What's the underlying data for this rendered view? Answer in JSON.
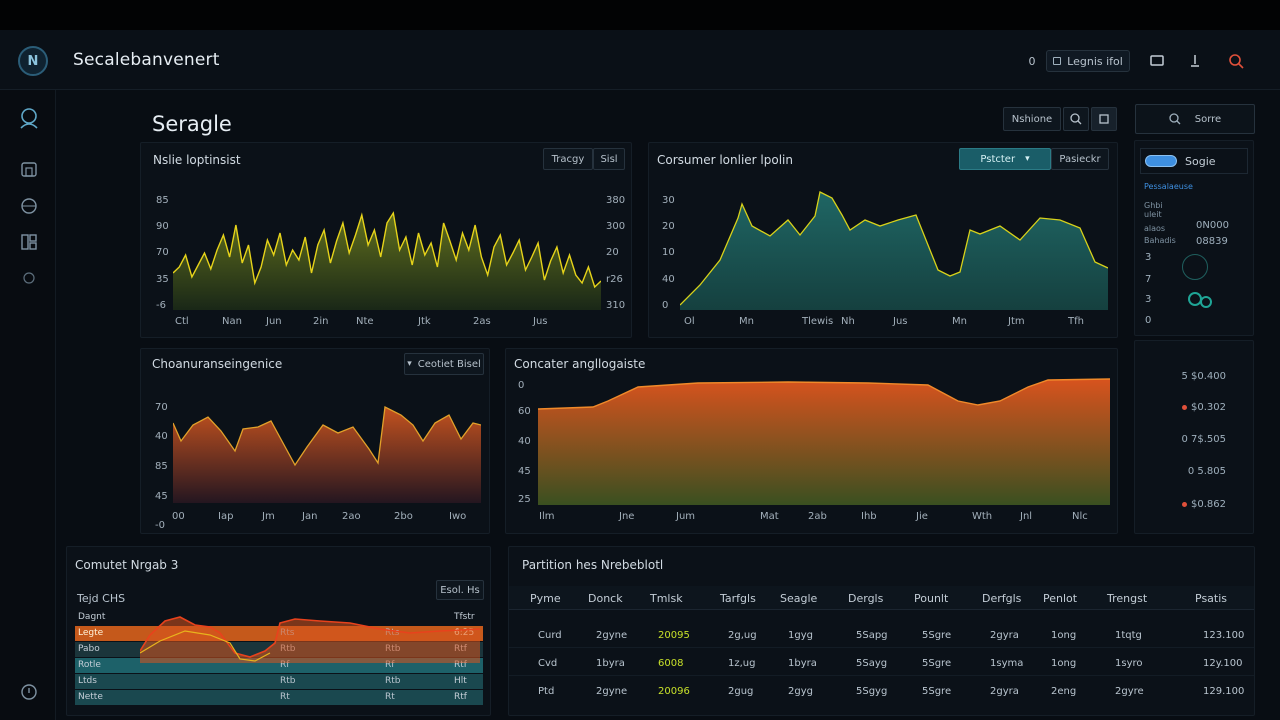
{
  "header": {
    "logo_glyph": "N",
    "app_title": "Secalebanvenert",
    "login_label": "Legnis ifol",
    "theme_toggle": "0",
    "icons": [
      "chat-icon",
      "share-icon",
      "alert-search-icon"
    ]
  },
  "sidebar": {
    "icons": [
      "user-search-icon",
      "store-icon",
      "globe-icon",
      "grid-icon",
      "info-icon",
      "help-icon"
    ]
  },
  "page": {
    "title": "Seragle",
    "menu_label": "Nshione",
    "search_label": "Sorre"
  },
  "panel1": {
    "title": "Nslie loptinsist",
    "btn_a": "Tracgy",
    "btn_b": "Sisl",
    "y_left": [
      "85",
      "90",
      "70",
      "35",
      "-6"
    ],
    "y_right": [
      "380",
      "300",
      "20",
      "r26",
      "310"
    ],
    "x_labels": [
      "Ctl",
      "Nan",
      "Jun",
      "2in",
      "Nte",
      "Jtk",
      "2as",
      "Jus"
    ]
  },
  "panel2": {
    "title": "Corsumer lonlier lpolin",
    "btn_a": "Pstcter",
    "btn_b": "Pasieckr",
    "y_labels": [
      "30",
      "20",
      "10",
      "40",
      "0"
    ],
    "x_labels": [
      "Ol",
      "Mn",
      "Tlewis",
      "Nh",
      "Jus",
      "Mn",
      "Jtm",
      "Tfh"
    ]
  },
  "panel3": {
    "title": "Choanuranseingenice",
    "btn": "Ceotiet Bisel",
    "y_labels": [
      "70",
      "40",
      "85",
      "45",
      "-0"
    ],
    "x_labels": [
      "00",
      "Iap",
      "Jm",
      "Jan",
      "2ao",
      "2bo",
      "Iwo"
    ]
  },
  "panel4": {
    "title": "Concater angllogaiste",
    "y_labels": [
      "0",
      "60",
      "40",
      "45",
      "25"
    ],
    "x_labels": [
      "Ilm",
      "Jne",
      "Jum",
      "Mat",
      "2ab",
      "Ihb",
      "Jie",
      "Wth",
      "Jnl",
      "Nlc"
    ]
  },
  "right_panel": {
    "toggle_label": "Sogie",
    "lines": [
      "Pessalaeuse",
      "Ghbi",
      "uleit",
      "alaos",
      "Bahadis"
    ],
    "values": [
      "0N000",
      "08839"
    ],
    "axis": [
      "3",
      "7",
      "3",
      "0"
    ],
    "list": [
      {
        "value": "5 $0.400",
        "dot": ""
      },
      {
        "value": "$0.302",
        "dot": "#e0503a"
      },
      {
        "value": "0 7$.505",
        "dot": ""
      },
      {
        "value": "0 5.805",
        "dot": ""
      },
      {
        "value": "$0.862",
        "dot": "#e0503a"
      }
    ]
  },
  "panel5": {
    "title": "Comutet Nrgab 3",
    "btn": "Esol. Hs",
    "subtitle": "Tejd CHS",
    "rows": [
      {
        "label": "Dagnt",
        "value": "Tfstr"
      },
      {
        "label": "Legte",
        "value": "6:25"
      },
      {
        "label": "Pabo",
        "value": "Rtf"
      },
      {
        "label": "Rotle",
        "value": "Rtf"
      },
      {
        "label": "Ltds",
        "value": "Hlt"
      },
      {
        "label": "Nette",
        "value": "Rtf"
      }
    ],
    "mid_labels": [
      "Rts",
      "Rtb",
      "Rf",
      "Rtb",
      "Rt"
    ]
  },
  "table": {
    "title": "Partition hes Nrebeblotl",
    "headers": [
      "Pyme",
      "Donck",
      "Tmlsk",
      "Tarfgls",
      "Seagle",
      "Dergls",
      "Pounlt",
      "Derfgls",
      "Penlot",
      "Trengst",
      "Psatis"
    ],
    "rows": [
      [
        "Curd",
        "2gyne",
        "20095",
        "2g,ug",
        "1gyg",
        "5Sapg",
        "5Sgre",
        "2gyra",
        "1ong",
        "1tqtg",
        "123.100"
      ],
      [
        "Cvd",
        "1byra",
        "6008",
        "1z,ug",
        "1byra",
        "5Sayg",
        "5Sgre",
        "1syma",
        "1ong",
        "1syro",
        "12y.100"
      ],
      [
        "Ptd",
        "2gyne",
        "20096",
        "2gug",
        "2gyg",
        "5Sgyg",
        "5Sgre",
        "2gyra",
        "2eng",
        "2gyre",
        "129.100"
      ]
    ]
  },
  "colors": {
    "bg": "#080d13",
    "panel": "#0b1118",
    "yellow_line": "#e6d31a",
    "teal_area": "#1c5a59",
    "orange_area": "#d8531e",
    "accent_blue": "#3e8fe0",
    "alert_red": "#e0503a"
  }
}
